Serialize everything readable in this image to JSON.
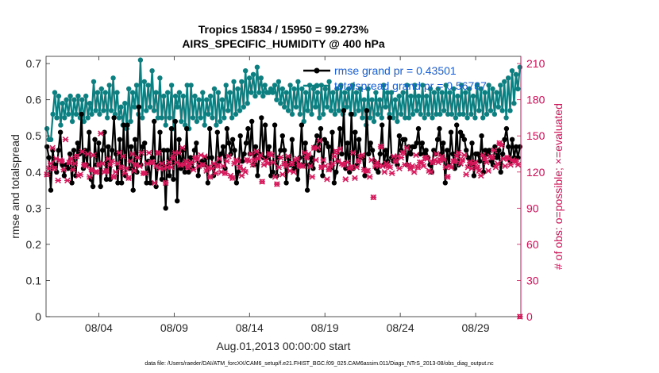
{
  "chart_data": {
    "type": "line",
    "title_line1": "Tropics 15834 / 15950 = 99.273%",
    "title_line2": "AIRS_SPECIFIC_HUMIDITY @ 400 hPa",
    "xlabel": "Aug.01,2013 00:00:00 start",
    "ylabel_left": "rmse and totalspread",
    "ylabel_right": "# of obs: o=possible; ×=evaluated",
    "footer": "data file: /Users/raeder/DAI/ATM_forcXX/CAM6_setup/f.e21.FHIST_BGC.f09_025.CAM6assim.011/Diags_NTrS_2013-08/obs_diag_output.nc",
    "x_range_days": [
      0,
      31.5
    ],
    "x_ticks": [
      {
        "day": 3.5,
        "label": "08/04"
      },
      {
        "day": 8.5,
        "label": "08/09"
      },
      {
        "day": 13.5,
        "label": "08/14"
      },
      {
        "day": 18.5,
        "label": "08/19"
      },
      {
        "day": 23.5,
        "label": "08/24"
      },
      {
        "day": 28.5,
        "label": "08/29"
      }
    ],
    "ylim_left": [
      0,
      0.72
    ],
    "y_ticks_left": [
      "0",
      "0.1",
      "0.2",
      "0.3",
      "0.4",
      "0.5",
      "0.6",
      "0.7"
    ],
    "ylim_right": [
      0,
      216
    ],
    "y_ticks_right": [
      "0",
      "30",
      "60",
      "90",
      "120",
      "150",
      "180",
      "210"
    ],
    "colors": {
      "rmse": "#000000",
      "spread": "#0e7f80",
      "obs": "#d6185a",
      "legend_text": "#1a5fd6",
      "right_axis": "#cc1155"
    },
    "series": [
      {
        "name": "rmse",
        "legend": "rmse grand pr = 0.43501",
        "values": [
          0.47,
          0.44,
          0.35,
          0.46,
          0.42,
          0.4,
          0.46,
          0.51,
          0.42,
          0.39,
          0.42,
          0.41,
          0.45,
          0.37,
          0.46,
          0.39,
          0.48,
          0.45,
          0.56,
          0.41,
          0.46,
          0.42,
          0.51,
          0.38,
          0.36,
          0.49,
          0.42,
          0.48,
          0.36,
          0.46,
          0.51,
          0.38,
          0.47,
          0.38,
          0.46,
          0.55,
          0.45,
          0.37,
          0.49,
          0.37,
          0.53,
          0.39,
          0.53,
          0.41,
          0.47,
          0.35,
          0.49,
          0.4,
          0.58,
          0.42,
          0.47,
          0.48,
          0.37,
          0.43,
          0.37,
          0.44,
          0.54,
          0.36,
          0.42,
          0.51,
          0.38,
          0.46,
          0.3,
          0.46,
          0.39,
          0.52,
          0.38,
          0.54,
          0.32,
          0.49,
          0.41,
          0.46,
          0.4,
          0.52,
          0.4,
          0.44,
          0.41,
          0.46,
          0.48,
          0.39,
          0.42,
          0.43,
          0.42,
          0.44,
          0.37,
          0.52,
          0.44,
          0.39,
          0.42,
          0.51,
          0.43,
          0.45,
          0.47,
          0.41,
          0.52,
          0.48,
          0.45,
          0.49,
          0.46,
          0.37,
          0.4,
          0.5,
          0.43,
          0.45,
          0.48,
          0.52,
          0.45,
          0.54,
          0.42,
          0.47,
          0.39,
          0.45,
          0.55,
          0.44,
          0.53,
          0.44,
          0.47,
          0.39,
          0.4,
          0.53,
          0.39,
          0.44,
          0.46,
          0.5,
          0.46,
          0.37,
          0.44,
          0.42,
          0.49,
          0.41,
          0.43,
          0.38,
          0.44,
          0.53,
          0.42,
          0.48,
          0.35,
          0.42,
          0.44,
          0.41,
          0.47,
          0.5,
          0.46,
          0.52,
          0.39,
          0.49,
          0.48,
          0.47,
          0.41,
          0.51,
          0.37,
          0.4,
          0.43,
          0.52,
          0.45,
          0.57,
          0.41,
          0.48,
          0.4,
          0.56,
          0.41,
          0.51,
          0.42,
          0.49,
          0.44,
          0.44,
          0.39,
          0.57,
          0.45,
          0.48,
          0.46,
          0.43,
          0.41,
          0.4,
          0.45,
          0.53,
          0.42,
          0.46,
          0.43,
          0.55,
          0.44,
          0.43,
          0.44,
          0.42,
          0.5,
          0.46,
          0.49,
          0.49,
          0.42,
          0.47,
          0.45,
          0.47,
          0.47,
          0.48,
          0.52,
          0.45,
          0.48,
          0.45,
          0.46,
          0.44,
          0.42,
          0.4,
          0.46,
          0.45,
          0.49,
          0.52,
          0.45,
          0.48,
          0.37,
          0.46,
          0.42,
          0.51,
          0.45,
          0.41,
          0.53,
          0.42,
          0.51,
          0.5,
          0.49,
          0.46,
          0.44,
          0.42,
          0.48,
          0.39,
          0.45,
          0.45,
          0.43,
          0.5,
          0.4,
          0.46,
          0.45,
          0.46,
          0.43,
          0.42,
          0.47,
          0.44,
          0.46,
          0.4,
          0.45,
          0.49,
          0.52,
          0.47,
          0.43,
          0.49,
          0.44,
          0.47,
          0.44,
          0.47
        ]
      },
      {
        "name": "totalspread",
        "legend": "totalspread grand pr = 0.56787",
        "values": [
          0.52,
          0.49,
          0.49,
          0.56,
          0.62,
          0.55,
          0.61,
          0.53,
          0.59,
          0.55,
          0.6,
          0.56,
          0.61,
          0.54,
          0.6,
          0.56,
          0.61,
          0.55,
          0.6,
          0.54,
          0.61,
          0.55,
          0.59,
          0.56,
          0.65,
          0.57,
          0.62,
          0.56,
          0.63,
          0.57,
          0.62,
          0.55,
          0.64,
          0.57,
          0.66,
          0.56,
          0.62,
          0.55,
          0.58,
          0.53,
          0.59,
          0.52,
          0.63,
          0.54,
          0.62,
          0.58,
          0.64,
          0.56,
          0.71,
          0.55,
          0.65,
          0.57,
          0.64,
          0.58,
          0.68,
          0.57,
          0.62,
          0.55,
          0.66,
          0.55,
          0.61,
          0.53,
          0.62,
          0.55,
          0.64,
          0.52,
          0.61,
          0.58,
          0.62,
          0.54,
          0.61,
          0.53,
          0.64,
          0.52,
          0.64,
          0.55,
          0.61,
          0.54,
          0.6,
          0.55,
          0.62,
          0.53,
          0.6,
          0.56,
          0.61,
          0.55,
          0.63,
          0.53,
          0.62,
          0.54,
          0.6,
          0.55,
          0.64,
          0.57,
          0.62,
          0.55,
          0.65,
          0.56,
          0.63,
          0.57,
          0.65,
          0.58,
          0.68,
          0.59,
          0.66,
          0.62,
          0.67,
          0.61,
          0.69,
          0.62,
          0.66,
          0.61,
          0.64,
          0.62,
          0.62,
          0.63,
          0.62,
          0.64,
          0.6,
          0.65,
          0.59,
          0.63,
          0.58,
          0.62,
          0.57,
          0.64,
          0.56,
          0.63,
          0.58,
          0.65,
          0.56,
          0.63,
          0.54,
          0.62,
          0.57,
          0.64,
          0.56,
          0.63,
          0.58,
          0.62,
          0.55,
          0.64,
          0.56,
          0.63,
          0.58,
          0.65,
          0.57,
          0.62,
          0.56,
          0.63,
          0.57,
          0.64,
          0.56,
          0.62,
          0.58,
          0.63,
          0.56,
          0.64,
          0.56,
          0.62,
          0.57,
          0.63,
          0.55,
          0.6,
          0.53,
          0.63,
          0.55,
          0.6,
          0.54,
          0.62,
          0.56,
          0.6,
          0.55,
          0.64,
          0.58,
          0.62,
          0.56,
          0.62,
          0.55,
          0.6,
          0.54,
          0.61,
          0.56,
          0.62,
          0.55,
          0.64,
          0.55,
          0.61,
          0.56,
          0.64,
          0.57,
          0.61,
          0.56,
          0.64,
          0.55,
          0.61,
          0.56,
          0.63,
          0.55,
          0.62,
          0.56,
          0.63,
          0.56,
          0.62,
          0.57,
          0.64,
          0.56,
          0.62,
          0.56,
          0.63,
          0.55,
          0.61,
          0.56,
          0.64,
          0.56,
          0.62,
          0.55,
          0.63,
          0.56,
          0.61,
          0.55,
          0.64,
          0.57,
          0.63,
          0.55,
          0.62,
          0.56,
          0.64,
          0.57,
          0.63,
          0.56,
          0.62,
          0.58,
          0.64,
          0.57,
          0.65,
          0.55,
          0.66,
          0.57,
          0.68,
          0.59,
          0.67,
          0.63,
          0.69
        ]
      },
      {
        "name": "obs_evaluated",
        "axis": "right",
        "values": [
          118,
          123,
          127,
          140,
          123,
          131,
          113,
          130,
          129,
          122,
          147,
          113,
          128,
          131,
          122,
          127,
          133,
          117,
          118,
          137,
          126,
          125,
          135,
          116,
          122,
          134,
          120,
          120,
          126,
          152,
          127,
          120,
          121,
          131,
          126,
          129,
          116,
          120,
          127,
          136,
          124,
          133,
          119,
          123,
          115,
          129,
          135,
          121,
          126,
          132,
          125,
          136,
          119,
          119,
          127,
          136,
          128,
          128,
          111,
          125,
          136,
          123,
          127,
          123,
          111,
          124,
          128,
          124,
          132,
          136,
          128,
          136,
          126,
          140,
          126,
          129,
          124,
          127,
          128,
          122,
          132,
          130,
          125,
          134,
          126,
          133,
          121,
          124,
          116,
          123,
          127,
          119,
          125,
          131,
          120,
          125,
          119,
          129,
          133,
          117,
          115,
          127,
          130,
          129,
          124,
          117,
          122,
          120,
          130,
          129,
          135,
          126,
          130,
          137,
          131,
          134,
          112,
          126,
          130,
          127,
          135,
          134,
          128,
          116,
          110,
          124,
          132,
          118,
          127,
          125,
          133,
          121,
          127,
          120,
          130,
          131,
          126,
          125,
          125,
          136,
          132,
          135,
          125,
          116,
          140,
          130,
          140,
          146,
          124,
          130,
          125,
          114,
          122,
          125,
          127,
          133,
          137,
          129,
          139,
          127,
          126,
          114,
          128,
          123,
          124,
          136,
          115,
          124,
          129,
          133,
          134,
          122,
          121,
          121,
          116,
          130,
          99,
          125,
          128,
          125,
          141,
          125,
          120,
          127,
          125,
          124,
          119,
          133,
          129,
          133,
          123,
          132,
          136,
          126,
          140,
          126,
          123,
          125,
          120,
          134,
          124,
          128,
          128,
          125,
          132,
          131,
          121,
          120,
          128,
          130,
          135,
          128,
          130,
          133,
          130,
          124,
          116,
          125,
          124,
          129,
          129,
          133,
          136,
          127,
          130,
          134,
          118,
          124,
          128,
          123,
          127,
          128,
          124,
          121,
          117,
          134,
          131,
          128,
          121,
          133,
          132,
          138,
          124,
          127,
          144,
          142,
          131,
          125,
          132,
          131,
          126,
          130,
          129,
          129,
          126,
          0
        ]
      },
      {
        "name": "obs_possible",
        "axis": "right",
        "values": [
          118,
          123,
          127,
          140,
          123,
          131,
          113,
          130,
          129,
          122,
          147,
          113,
          128,
          131,
          122,
          127,
          133,
          117,
          118,
          137,
          126,
          125,
          135,
          116,
          122,
          134,
          120,
          120,
          126,
          152,
          127,
          120,
          121,
          131,
          126,
          129,
          116,
          120,
          127,
          136,
          124,
          133,
          119,
          123,
          115,
          129,
          135,
          121,
          126,
          132,
          125,
          136,
          119,
          119,
          127,
          136,
          128,
          128,
          111,
          125,
          136,
          123,
          127,
          123,
          111,
          124,
          128,
          124,
          132,
          136,
          128,
          136,
          126,
          140,
          126,
          129,
          124,
          127,
          128,
          122,
          132,
          130,
          125,
          134,
          126,
          133,
          121,
          124,
          116,
          123,
          127,
          119,
          125,
          131,
          120,
          125,
          119,
          129,
          133,
          117,
          115,
          127,
          130,
          129,
          124,
          117,
          122,
          120,
          130,
          129,
          135,
          126,
          130,
          137,
          131,
          134,
          112,
          126,
          130,
          127,
          135,
          134,
          128,
          116,
          110,
          124,
          132,
          118,
          127,
          125,
          133,
          121,
          127,
          120,
          130,
          131,
          126,
          125,
          125,
          136,
          132,
          135,
          125,
          116,
          140,
          130,
          140,
          146,
          124,
          130,
          125,
          114,
          122,
          125,
          127,
          133,
          137,
          129,
          139,
          127,
          126,
          114,
          128,
          123,
          124,
          136,
          115,
          124,
          129,
          133,
          134,
          122,
          121,
          121,
          116,
          130,
          99,
          125,
          128,
          125,
          141,
          125,
          120,
          127,
          125,
          124,
          119,
          133,
          129,
          133,
          123,
          132,
          136,
          126,
          140,
          126,
          123,
          125,
          120,
          134,
          124,
          128,
          128,
          125,
          132,
          131,
          121,
          120,
          128,
          130,
          135,
          128,
          130,
          133,
          130,
          124,
          116,
          125,
          124,
          129,
          129,
          133,
          136,
          127,
          130,
          134,
          118,
          124,
          128,
          123,
          127,
          128,
          124,
          121,
          117,
          134,
          131,
          128,
          121,
          133,
          132,
          138,
          124,
          127,
          144,
          142,
          131,
          125,
          132,
          131,
          126,
          130,
          129,
          129,
          126,
          0
        ]
      }
    ]
  }
}
